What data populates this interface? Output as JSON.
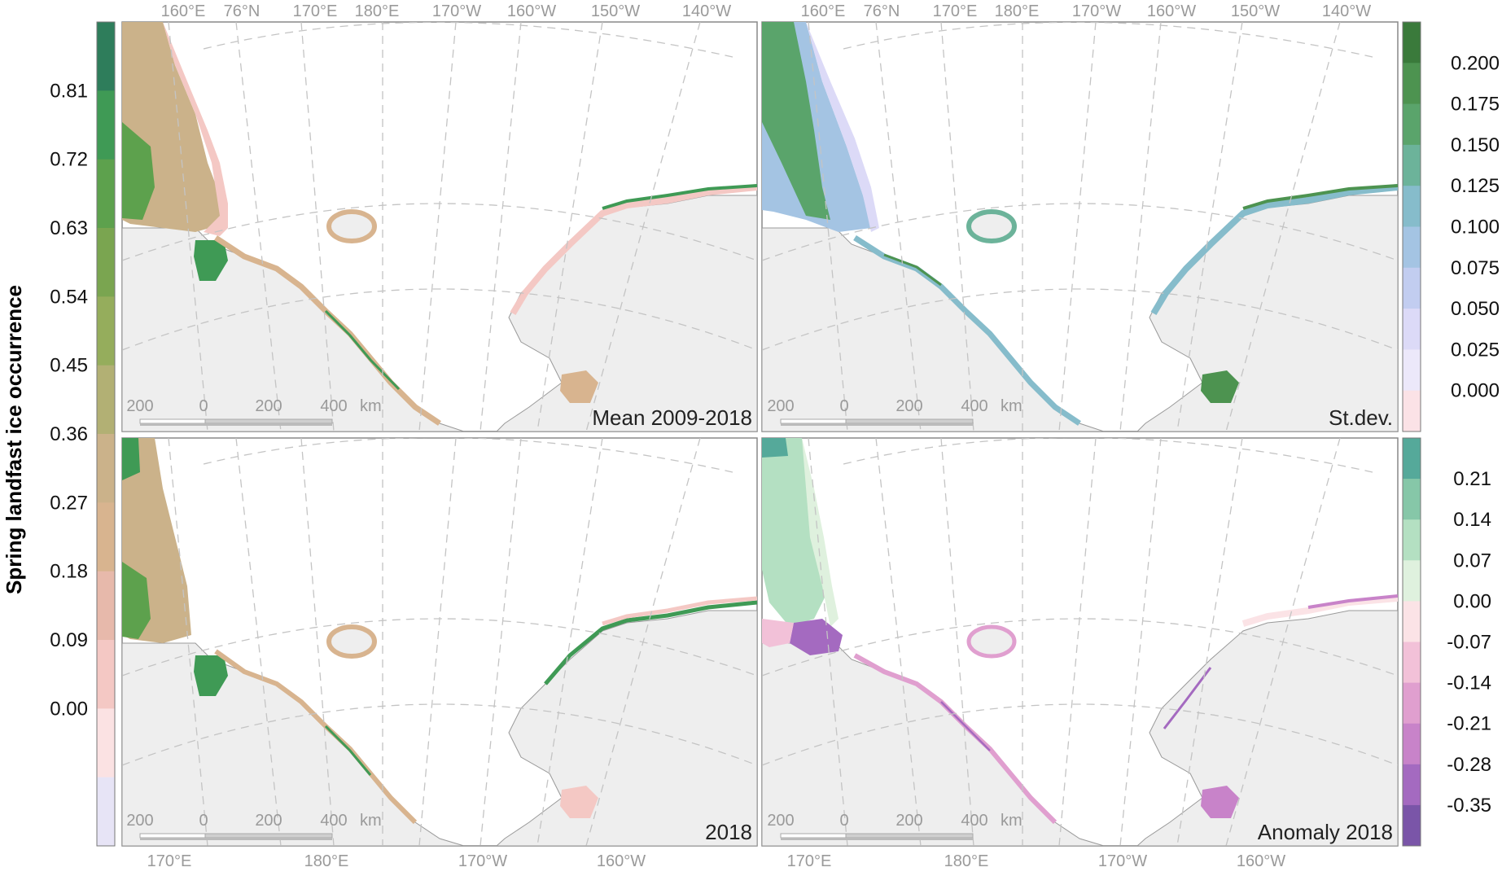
{
  "figure": {
    "ylabel": "Spring landfast ice occurrence"
  },
  "colorbar_left": {
    "ticks": [
      "0.81",
      "0.72",
      "0.63",
      "0.54",
      "0.45",
      "0.36",
      "0.27",
      "0.18",
      "0.09",
      "0.00"
    ],
    "colors": [
      "#2e7d5b",
      "#3f9a55",
      "#5da14d",
      "#7aa550",
      "#95ad5c",
      "#b2b074",
      "#cbb28a",
      "#d8b48f",
      "#e7b9ab",
      "#f4c8c4",
      "#fbe2e3",
      "#e7e4f6"
    ]
  },
  "colorbar_stdev": {
    "ticks": [
      "0.200",
      "0.175",
      "0.150",
      "0.125",
      "0.100",
      "0.075",
      "0.050",
      "0.025",
      "0.000"
    ],
    "colors": [
      "#3a7a3b",
      "#4d9350",
      "#5aa46b",
      "#6cb39a",
      "#86bccb",
      "#a4c4e3",
      "#c2cdf0",
      "#dcdaf7",
      "#ece8fa",
      "#fbe2e6"
    ]
  },
  "colorbar_anomaly": {
    "ticks": [
      "0.21",
      "0.14",
      "0.07",
      "0.00",
      "-0.07",
      "-0.14",
      "-0.21",
      "-0.28",
      "-0.35"
    ],
    "colors": [
      "#55a99a",
      "#86c7a8",
      "#b4e0c2",
      "#dff1de",
      "#fbe3e6",
      "#f2c1d8",
      "#e09fcf",
      "#c883c9",
      "#a46ac0",
      "#7a55a8"
    ]
  },
  "panels": [
    {
      "id": "mean",
      "title": "Mean 2009-2018",
      "top_ticks": [
        "160°E",
        "76°N",
        "170°E",
        "180°E",
        "170°W",
        "160°W",
        "150°W",
        "140°W"
      ],
      "scale": [
        "200",
        "0",
        "200",
        "400",
        "km"
      ]
    },
    {
      "id": "stdev",
      "title": "St.dev.",
      "top_ticks": [
        "160°E",
        "76°N",
        "170°E",
        "180°E",
        "170°W",
        "160°W",
        "150°W",
        "140°W"
      ],
      "scale": [
        "200",
        "0",
        "200",
        "400",
        "km"
      ]
    },
    {
      "id": "y2018",
      "title": "2018",
      "bottom_ticks": [
        "170°E",
        "180°E",
        "170°W",
        "160°W"
      ],
      "scale": [
        "200",
        "0",
        "200",
        "400",
        "km"
      ]
    },
    {
      "id": "anomaly",
      "title": "Anomaly 2018",
      "bottom_ticks": [
        "170°E",
        "180°E",
        "170°W",
        "160°W"
      ],
      "scale": [
        "200",
        "0",
        "200",
        "400",
        "km"
      ]
    }
  ],
  "legend_colors": {
    "land": "#eeeeee",
    "ocean": "#ffffff",
    "coast": "#999999",
    "graticule": "#c4c4c4"
  }
}
